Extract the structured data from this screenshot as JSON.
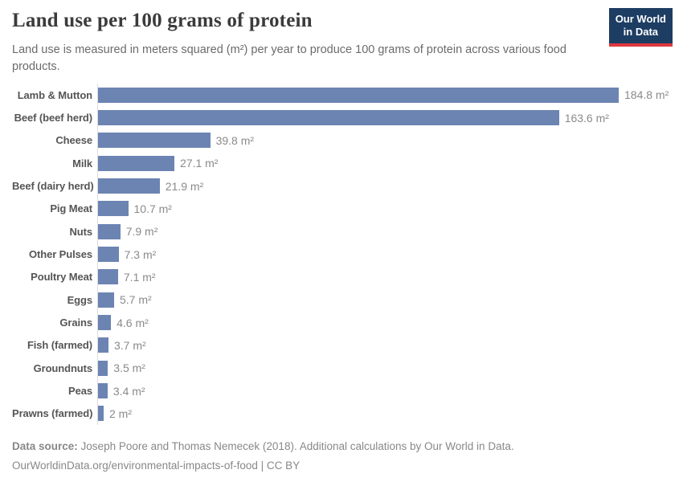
{
  "header": {
    "title": "Land use per 100 grams of protein",
    "subtitle": "Land use is measured in meters squared (m²) per year to produce 100 grams of protein across various food products."
  },
  "logo": {
    "line1": "Our World",
    "line2": "in Data"
  },
  "chart_data": {
    "type": "bar",
    "orientation": "horizontal",
    "title": "Land use per 100 grams of protein",
    "subtitle": "Land use is measured in meters squared (m²) per year to produce 100 grams of protein across various food products.",
    "unit": "m²",
    "xlabel": "",
    "ylabel": "",
    "xlim": [
      0,
      184.8
    ],
    "grid": false,
    "legend": false,
    "categories": [
      "Lamb & Mutton",
      "Beef (beef herd)",
      "Cheese",
      "Milk",
      "Beef (dairy herd)",
      "Pig Meat",
      "Nuts",
      "Other Pulses",
      "Poultry Meat",
      "Eggs",
      "Grains",
      "Fish (farmed)",
      "Groundnuts",
      "Peas",
      "Prawns (farmed)"
    ],
    "values": [
      184.8,
      163.6,
      39.8,
      27.1,
      21.9,
      10.7,
      7.9,
      7.3,
      7.1,
      5.7,
      4.6,
      3.7,
      3.5,
      3.4,
      2
    ],
    "value_labels": [
      "184.8 m²",
      "163.6 m²",
      "39.8 m²",
      "27.1 m²",
      "21.9 m²",
      "10.7 m²",
      "7.9 m²",
      "7.3 m²",
      "7.1 m²",
      "5.7 m²",
      "4.6 m²",
      "3.7 m²",
      "3.5 m²",
      "3.4 m²",
      "2 m²"
    ]
  },
  "footer": {
    "source_label": "Data source:",
    "source_text": "Joseph Poore and Thomas Nemecek (2018). Additional calculations by Our World in Data.",
    "link_line": "OurWorldinData.org/environmental-impacts-of-food | CC BY"
  },
  "colors": {
    "bar": "#6c84b2",
    "axis_line": "#dcdcdc",
    "title": "#3b3b3b",
    "subtitle": "#6b6b6b",
    "category_label": "#555555",
    "value_label": "#8a8a8a",
    "footer_text": "#888888",
    "logo_bg": "#1d3d63",
    "logo_stripe": "#e0373f",
    "background": "#ffffff"
  }
}
